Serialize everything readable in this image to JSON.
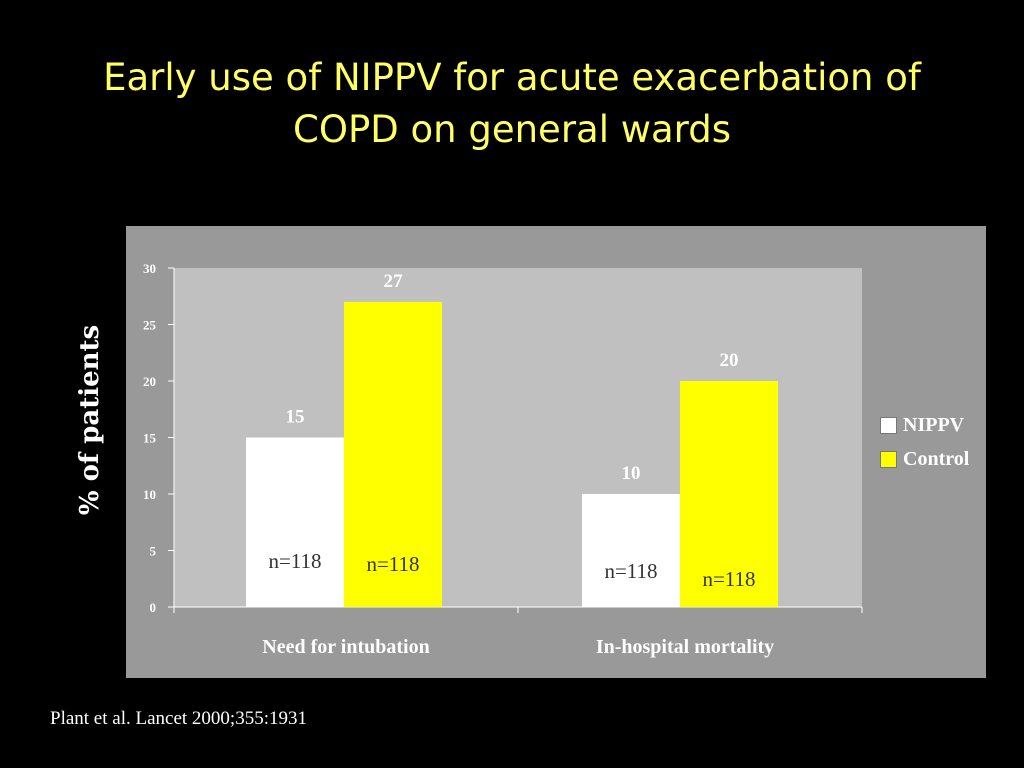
{
  "slide": {
    "title_line1": "Early use of NIPPV for acute exacerbation of",
    "title_line2": "COPD on general wards",
    "citation": "Plant et al. Lancet 2000;355:1931"
  },
  "colors": {
    "title": "#ffff66",
    "nippv": "#ffffff",
    "control": "#ffff00",
    "plot_bg": "#c0c0c0",
    "frame_bg": "#999999"
  },
  "chart_data": {
    "type": "bar",
    "categories": [
      "Need for intubation",
      "In-hospital mortality"
    ],
    "series": [
      {
        "name": "NIPPV",
        "values": [
          15,
          10
        ],
        "n_labels": [
          "n=118",
          "n=118"
        ]
      },
      {
        "name": "Control",
        "values": [
          27,
          20
        ],
        "n_labels": [
          "n=118",
          "n=118"
        ]
      }
    ],
    "ylabel": "% of patients",
    "ylim": [
      0,
      30
    ],
    "yticks": [
      0,
      5,
      10,
      15,
      20,
      25,
      30
    ],
    "legend_position": "right",
    "grid": false
  }
}
